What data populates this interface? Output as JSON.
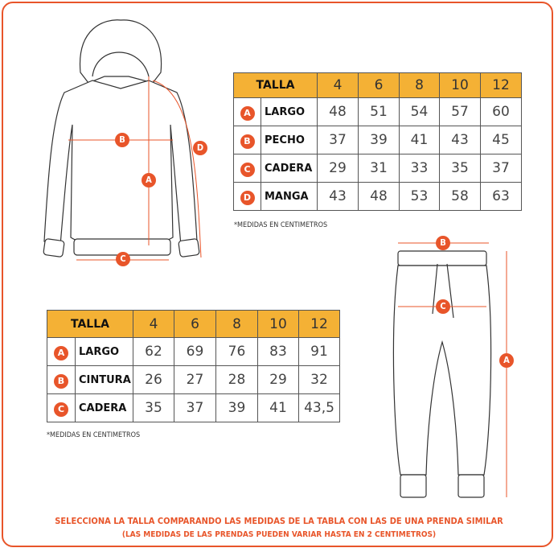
{
  "colors": {
    "accent": "#e8552a",
    "header": "#f4b135"
  },
  "top_table": {
    "header": "TALLA",
    "sizes": [
      "4",
      "6",
      "8",
      "10",
      "12"
    ],
    "rows": [
      {
        "letter": "A",
        "label": "LARGO",
        "values": [
          "48",
          "51",
          "54",
          "57",
          "60"
        ]
      },
      {
        "letter": "B",
        "label": "PECHO",
        "values": [
          "37",
          "39",
          "41",
          "43",
          "45"
        ]
      },
      {
        "letter": "C",
        "label": "CADERA",
        "values": [
          "29",
          "31",
          "33",
          "35",
          "37"
        ]
      },
      {
        "letter": "D",
        "label": "MANGA",
        "values": [
          "43",
          "48",
          "53",
          "58",
          "63"
        ]
      }
    ],
    "note": "*MEDIDAS EN CENTIMETROS"
  },
  "bottom_table": {
    "header": "TALLA",
    "sizes": [
      "4",
      "6",
      "8",
      "10",
      "12"
    ],
    "rows": [
      {
        "letter": "A",
        "label": "LARGO",
        "values": [
          "62",
          "69",
          "76",
          "83",
          "91"
        ]
      },
      {
        "letter": "B",
        "label": "CINTURA",
        "values": [
          "26",
          "27",
          "28",
          "29",
          "32"
        ]
      },
      {
        "letter": "C",
        "label": "CADERA",
        "values": [
          "35",
          "37",
          "39",
          "41",
          "43,5"
        ]
      }
    ],
    "note": "*MEDIDAS EN CENTIMETROS"
  },
  "hoodie_markers": [
    "A",
    "B",
    "C",
    "D"
  ],
  "pants_markers": [
    "A",
    "B",
    "C"
  ],
  "footer": {
    "line1": "SELECCIONA LA TALLA COMPARANDO LAS MEDIDAS DE LA TABLA CON LAS DE UNA PRENDA SIMILAR",
    "line2": "(LAS MEDIDAS DE LAS PRENDAS PUEDEN VARIAR HASTA EN 2 CENTIMETROS)"
  }
}
